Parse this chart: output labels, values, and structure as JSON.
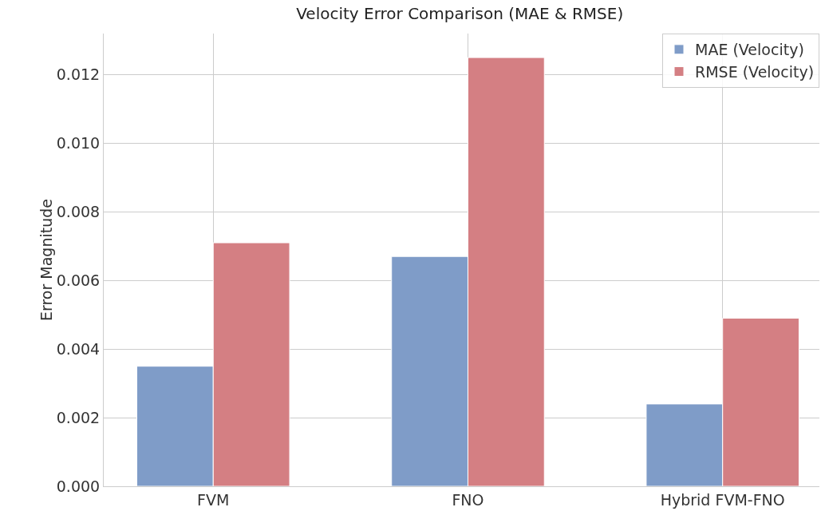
{
  "chart_data": {
    "type": "bar",
    "title": "Velocity Error Comparison (MAE & RMSE)",
    "ylabel": "Error Magnitude",
    "categories": [
      "FVM",
      "FNO",
      "Hybrid FVM-FNO"
    ],
    "series": [
      {
        "name": "MAE (Velocity)",
        "color": "#7f9cc8",
        "values": [
          0.0035,
          0.0067,
          0.0024
        ]
      },
      {
        "name": "RMSE (Velocity)",
        "color": "#d47f83",
        "values": [
          0.0071,
          0.0125,
          0.0049
        ]
      }
    ],
    "ylim": [
      0,
      0.0132
    ],
    "yticks": [
      {
        "value": 0,
        "label": "0.000"
      },
      {
        "value": 0.002,
        "label": "0.002"
      },
      {
        "value": 0.004,
        "label": "0.004"
      },
      {
        "value": 0.006,
        "label": "0.006"
      },
      {
        "value": 0.008,
        "label": "0.008"
      },
      {
        "value": 0.01,
        "label": "0.010"
      },
      {
        "value": 0.012,
        "label": "0.012"
      }
    ],
    "grid": true,
    "legend": "top right"
  }
}
